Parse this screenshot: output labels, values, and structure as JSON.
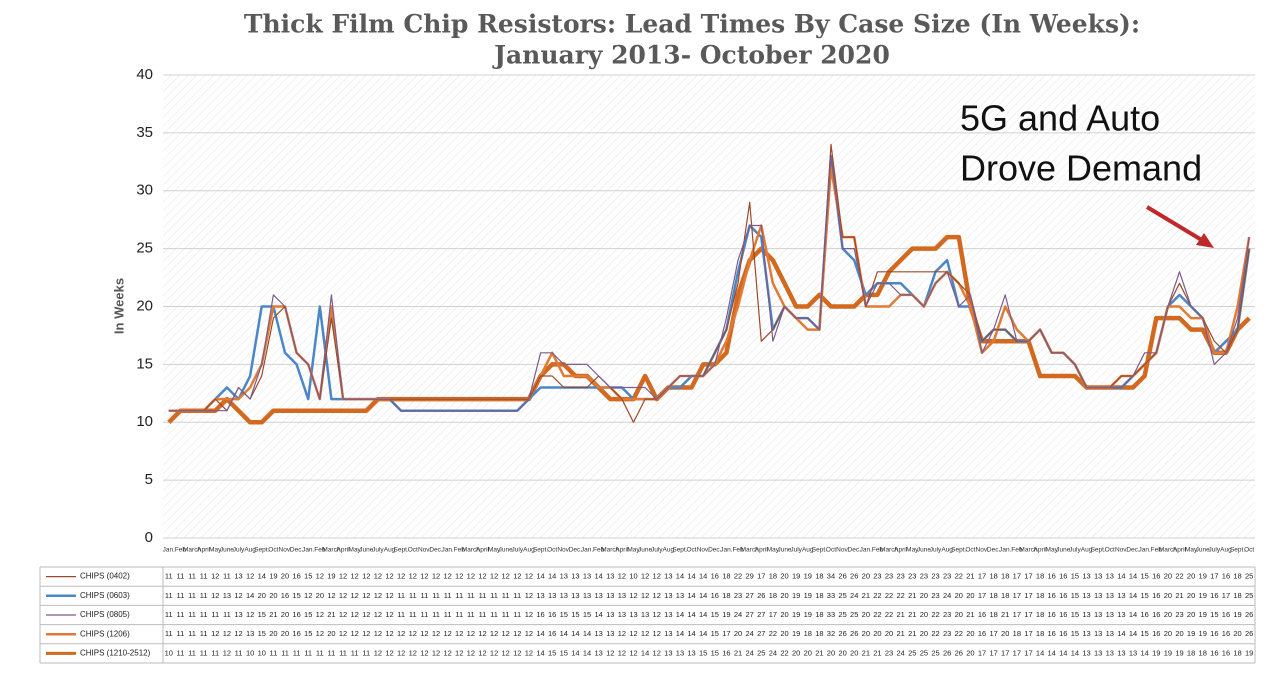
{
  "chart_data": {
    "type": "line",
    "title": "Thick Film Chip Resistors: Lead Times By Case Size (In Weeks):",
    "subtitle": "January 2013- October 2020",
    "y_label": "In Weeks",
    "annotation": [
      "5G and Auto",
      "Drove Demand"
    ],
    "grid": true,
    "ylim": [
      0,
      40
    ],
    "yticks": [
      0,
      5,
      10,
      15,
      20,
      25,
      30,
      35,
      40
    ],
    "categories": [
      "Jan.",
      "Feb",
      "March",
      "April",
      "May",
      "June",
      "July",
      "Aug",
      "Sept.",
      "Oct",
      "Nov.",
      "Dec.",
      "Jan.",
      "Feb",
      "March",
      "April",
      "May",
      "June",
      "July",
      "Aug",
      "Sept.",
      "Oct",
      "Nov.",
      "Dec.",
      "Jan.",
      "Feb",
      "March",
      "April",
      "May",
      "June",
      "July",
      "Aug",
      "Sept.",
      "Oct",
      "Nov.",
      "Dec.",
      "Jan.",
      "Feb",
      "March",
      "April",
      "May",
      "June",
      "July",
      "Aug",
      "Sept.",
      "Oct",
      "Nov.",
      "Dec.",
      "Jan.",
      "Feb",
      "March",
      "April",
      "May",
      "June",
      "July",
      "Aug",
      "Sept.",
      "Oct",
      "Nov.",
      "Dec.",
      "Jan.",
      "Feb",
      "March",
      "April",
      "May",
      "June",
      "July",
      "Aug",
      "Sept.",
      "Oct",
      "Nov.",
      "Dec.",
      "Jan.",
      "Feb",
      "March",
      "April",
      "May",
      "June",
      "July",
      "Aug",
      "Sept.",
      "Oct",
      "Nov.",
      "Dec.",
      "Jan.",
      "Feb",
      "March",
      "April",
      "May",
      "June",
      "July",
      "Aug",
      "Sept.",
      "Oct"
    ],
    "series": [
      {
        "name": "CHIPS (0402)",
        "color": "#9c4a2a",
        "width": 1.2,
        "values": [
          11,
          11,
          11,
          11,
          12,
          11,
          13,
          12,
          14,
          19,
          20,
          16,
          15,
          12,
          19,
          12,
          12,
          12,
          12,
          12,
          12,
          12,
          12,
          12,
          12,
          12,
          12,
          12,
          12,
          12,
          12,
          12,
          14,
          14,
          13,
          13,
          13,
          14,
          13,
          12,
          10,
          12,
          12,
          13,
          14,
          14,
          14,
          16,
          18,
          22,
          29,
          17,
          18,
          20,
          19,
          19,
          18,
          34,
          26,
          26,
          20,
          23,
          23,
          23,
          23,
          23,
          23,
          23,
          22,
          21,
          17,
          18,
          18,
          17,
          17,
          18,
          16,
          16,
          15,
          13,
          13,
          13,
          14,
          14,
          15,
          16,
          20,
          22,
          20,
          19,
          17,
          16,
          18,
          25
        ]
      },
      {
        "name": "CHIPS (0603)",
        "color": "#4a86c8",
        "width": 2.5,
        "values": [
          11,
          11,
          11,
          11,
          12,
          13,
          12,
          14,
          20,
          20,
          16,
          15,
          12,
          20,
          12,
          12,
          12,
          12,
          12,
          12,
          11,
          11,
          11,
          11,
          11,
          11,
          11,
          11,
          11,
          11,
          11,
          12,
          13,
          13,
          13,
          13,
          13,
          13,
          13,
          13,
          12,
          12,
          12,
          13,
          13,
          14,
          14,
          16,
          18,
          23,
          27,
          26,
          18,
          20,
          19,
          19,
          18,
          33,
          25,
          24,
          21,
          22,
          22,
          22,
          21,
          20,
          23,
          24,
          20,
          20,
          17,
          18,
          18,
          17,
          17,
          18,
          16,
          16,
          15,
          13,
          13,
          13,
          13,
          14,
          15,
          16,
          20,
          21,
          20,
          19,
          16,
          17,
          18,
          25
        ]
      },
      {
        "name": "CHIPS (0805)",
        "color": "#7d5b8c",
        "width": 1.2,
        "values": [
          11,
          11,
          11,
          11,
          11,
          11,
          13,
          12,
          15,
          21,
          20,
          16,
          15,
          12,
          21,
          12,
          12,
          12,
          12,
          12,
          11,
          11,
          11,
          11,
          11,
          11,
          11,
          11,
          11,
          11,
          11,
          12,
          16,
          16,
          15,
          15,
          15,
          14,
          13,
          13,
          13,
          13,
          12,
          13,
          14,
          14,
          14,
          15,
          19,
          24,
          27,
          27,
          17,
          20,
          19,
          19,
          18,
          33,
          25,
          25,
          20,
          22,
          22,
          21,
          21,
          20,
          22,
          23,
          20,
          21,
          16,
          18,
          21,
          17,
          17,
          18,
          16,
          16,
          15,
          13,
          13,
          13,
          13,
          14,
          16,
          16,
          20,
          23,
          20,
          19,
          15,
          16,
          19,
          26
        ]
      },
      {
        "name": "CHIPS (1206)",
        "color": "#e07a35",
        "width": 2.5,
        "values": [
          11,
          11,
          11,
          11,
          12,
          12,
          12,
          13,
          15,
          20,
          20,
          16,
          15,
          12,
          20,
          12,
          12,
          12,
          12,
          12,
          12,
          12,
          12,
          12,
          12,
          12,
          12,
          12,
          12,
          12,
          12,
          12,
          14,
          16,
          14,
          14,
          14,
          13,
          13,
          12,
          12,
          12,
          12,
          13,
          14,
          14,
          14,
          15,
          17,
          20,
          24,
          27,
          22,
          20,
          19,
          18,
          18,
          32,
          26,
          26,
          20,
          20,
          20,
          21,
          21,
          20,
          22,
          23,
          22,
          20,
          16,
          17,
          20,
          18,
          17,
          18,
          16,
          16,
          15,
          13,
          13,
          13,
          14,
          14,
          15,
          16,
          20,
          20,
          19,
          19,
          16,
          16,
          20,
          26
        ]
      },
      {
        "name": "CHIPS (1210-2512)",
        "color": "#d2691e",
        "width": 4.5,
        "values": [
          10,
          11,
          11,
          11,
          11,
          12,
          11,
          10,
          10,
          11,
          11,
          11,
          11,
          11,
          11,
          11,
          11,
          11,
          12,
          12,
          12,
          12,
          12,
          12,
          12,
          12,
          12,
          12,
          12,
          12,
          12,
          12,
          14,
          15,
          15,
          14,
          14,
          13,
          12,
          12,
          12,
          14,
          12,
          13,
          13,
          13,
          15,
          15,
          16,
          21,
          24,
          25,
          24,
          22,
          20,
          20,
          21,
          20,
          20,
          20,
          21,
          21,
          23,
          24,
          25,
          25,
          25,
          26,
          26,
          20,
          17,
          17,
          17,
          17,
          17,
          14,
          14,
          14,
          14,
          13,
          13,
          13,
          13,
          13,
          14,
          19,
          19,
          19,
          18,
          18,
          16,
          16,
          18,
          19
        ]
      }
    ]
  }
}
